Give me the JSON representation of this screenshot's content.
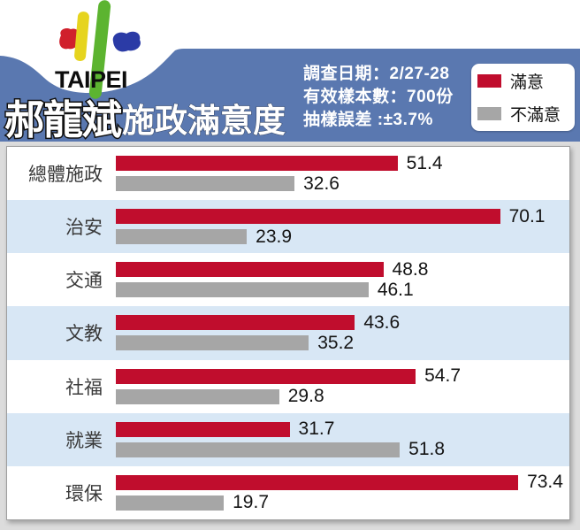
{
  "header": {
    "logo_text": "TAIPEI",
    "title_main": "郝龍斌",
    "title_suffix": "施政滿意度",
    "survey_info": [
      "調查日期：2/27-28",
      "有效樣本數：700份",
      "抽樣誤差 :±3.7%"
    ],
    "legend": [
      {
        "label": "滿意",
        "color": "#c00d2d"
      },
      {
        "label": "不滿意",
        "color": "#a6a6a6"
      }
    ]
  },
  "chart_data": {
    "type": "bar",
    "orientation": "horizontal",
    "title": "郝龍斌施政滿意度",
    "categories": [
      "總體施政",
      "治安",
      "交通",
      "文教",
      "社福",
      "就業",
      "環保"
    ],
    "series": [
      {
        "name": "滿意",
        "color": "#c00d2d",
        "values": [
          51.4,
          70.1,
          48.8,
          43.6,
          54.7,
          31.7,
          73.4
        ]
      },
      {
        "name": "不滿意",
        "color": "#a6a6a6",
        "values": [
          32.6,
          23.9,
          46.1,
          35.2,
          29.8,
          51.8,
          19.7
        ]
      }
    ],
    "xlim": [
      0,
      80
    ],
    "grid": false,
    "legend_position": "top-right",
    "row_stripe_colors": [
      "#ffffff",
      "#d8e7f5"
    ]
  },
  "colors": {
    "banner_blue": "#5a78b0",
    "page_margin_gray": "#dcdcdc",
    "logo_red": "#d0202c",
    "logo_yellow": "#e6d41e",
    "logo_green": "#5cb430",
    "logo_blue": "#2b3ba6"
  }
}
